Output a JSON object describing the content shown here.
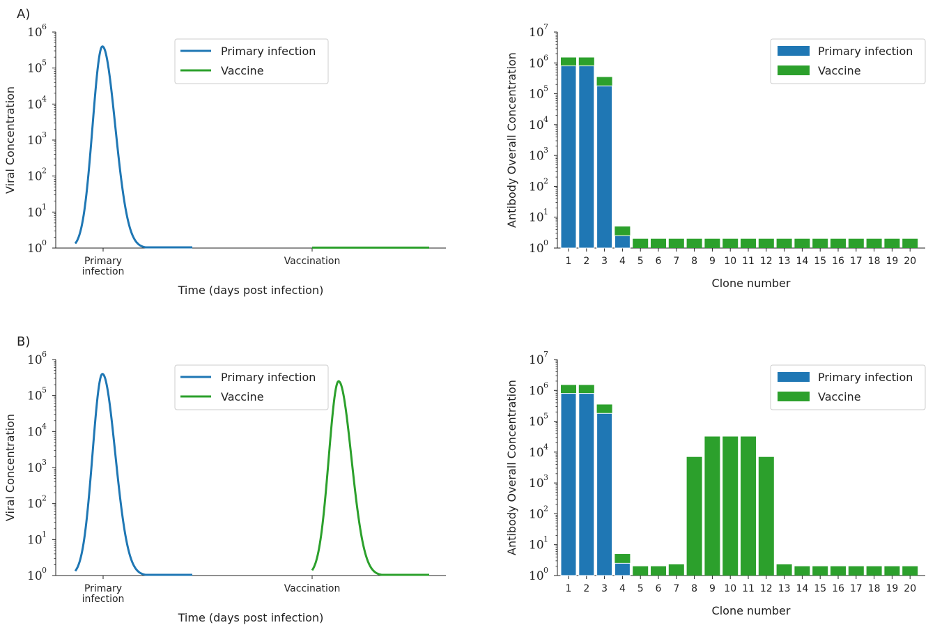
{
  "colors": {
    "primary": "#1f77b4",
    "vaccine": "#2ca02c",
    "axis": "#222222",
    "legend_border": "#cccccc"
  },
  "chart_data": [
    {
      "panel_label": "A)",
      "type": "line",
      "yscale": "log",
      "ylim": [
        1,
        1000000
      ],
      "ylabel": "Viral Concentration",
      "xlabel": "Time (days post infection)",
      "xticks": [
        {
          "name": "primary",
          "lines": [
            "Primary",
            "infection"
          ]
        },
        {
          "name": "vaccination",
          "lines": [
            "Vaccination"
          ]
        }
      ],
      "ytick_exponents": [
        "0",
        "1",
        "2",
        "3",
        "4",
        "5",
        "6"
      ],
      "legend": {
        "placement": "top-right",
        "entries": [
          "Primary infection",
          "Vaccine"
        ]
      },
      "series": [
        {
          "name": "Primary infection",
          "color": "#1f77b4",
          "peak": 400000,
          "active": true
        },
        {
          "name": "Vaccine",
          "color": "#2ca02c",
          "peak": 1,
          "active": false
        }
      ]
    },
    {
      "type": "bar",
      "stacked": true,
      "yscale": "log",
      "ylim": [
        1,
        10000000
      ],
      "ylabel": "Antibody Overall Concentration",
      "xlabel": "Clone number",
      "categories": [
        "1",
        "2",
        "3",
        "4",
        "5",
        "6",
        "7",
        "8",
        "9",
        "10",
        "11",
        "12",
        "13",
        "14",
        "15",
        "16",
        "17",
        "18",
        "19",
        "20"
      ],
      "ytick_exponents": [
        "0",
        "1",
        "2",
        "3",
        "4",
        "5",
        "6",
        "7"
      ],
      "legend": {
        "placement": "top-right",
        "entries": [
          "Primary infection",
          "Vaccine"
        ]
      },
      "series": [
        {
          "name": "Primary infection",
          "color": "#1f77b4",
          "values": [
            800000,
            800000,
            180000,
            2.5,
            0,
            0,
            0,
            0,
            0,
            0,
            0,
            0,
            0,
            0,
            0,
            0,
            0,
            0,
            0,
            0
          ]
        },
        {
          "name": "Vaccine",
          "color": "#2ca02c",
          "values": [
            1500000,
            1500000,
            350000,
            5,
            2,
            2,
            2,
            2,
            2,
            2,
            2,
            2,
            2,
            2,
            2,
            2,
            2,
            2,
            2,
            2
          ]
        }
      ]
    },
    {
      "panel_label": "B)",
      "type": "line",
      "yscale": "log",
      "ylim": [
        1,
        1000000
      ],
      "ylabel": "Viral Concentration",
      "xlabel": "Time (days post infection)",
      "xticks": [
        {
          "name": "primary",
          "lines": [
            "Primary",
            "infection"
          ]
        },
        {
          "name": "vaccination",
          "lines": [
            "Vaccination"
          ]
        }
      ],
      "ytick_exponents": [
        "0",
        "1",
        "2",
        "3",
        "4",
        "5",
        "6"
      ],
      "legend": {
        "placement": "top-right",
        "entries": [
          "Primary infection",
          "Vaccine"
        ]
      },
      "series": [
        {
          "name": "Primary infection",
          "color": "#1f77b4",
          "peak": 400000,
          "active": true
        },
        {
          "name": "Vaccine",
          "color": "#2ca02c",
          "peak": 250000,
          "active": true
        }
      ]
    },
    {
      "type": "bar",
      "stacked": true,
      "yscale": "log",
      "ylim": [
        1,
        10000000
      ],
      "ylabel": "Antibody Overall Concentration",
      "xlabel": "Clone number",
      "categories": [
        "1",
        "2",
        "3",
        "4",
        "5",
        "6",
        "7",
        "8",
        "9",
        "10",
        "11",
        "12",
        "13",
        "14",
        "15",
        "16",
        "17",
        "18",
        "19",
        "20"
      ],
      "ytick_exponents": [
        "0",
        "1",
        "2",
        "3",
        "4",
        "5",
        "6",
        "7"
      ],
      "legend": {
        "placement": "top-right",
        "entries": [
          "Primary infection",
          "Vaccine"
        ]
      },
      "series": [
        {
          "name": "Primary infection",
          "color": "#1f77b4",
          "values": [
            800000,
            800000,
            180000,
            2.5,
            0,
            0,
            0,
            0,
            0,
            0,
            0,
            0,
            0,
            0,
            0,
            0,
            0,
            0,
            0,
            0
          ]
        },
        {
          "name": "Vaccine",
          "color": "#2ca02c",
          "values": [
            1500000,
            1500000,
            350000,
            5,
            2,
            2,
            2.3,
            7000,
            32000,
            32000,
            32000,
            7000,
            2.3,
            2,
            2,
            2,
            2,
            2,
            2,
            2
          ]
        }
      ]
    }
  ]
}
